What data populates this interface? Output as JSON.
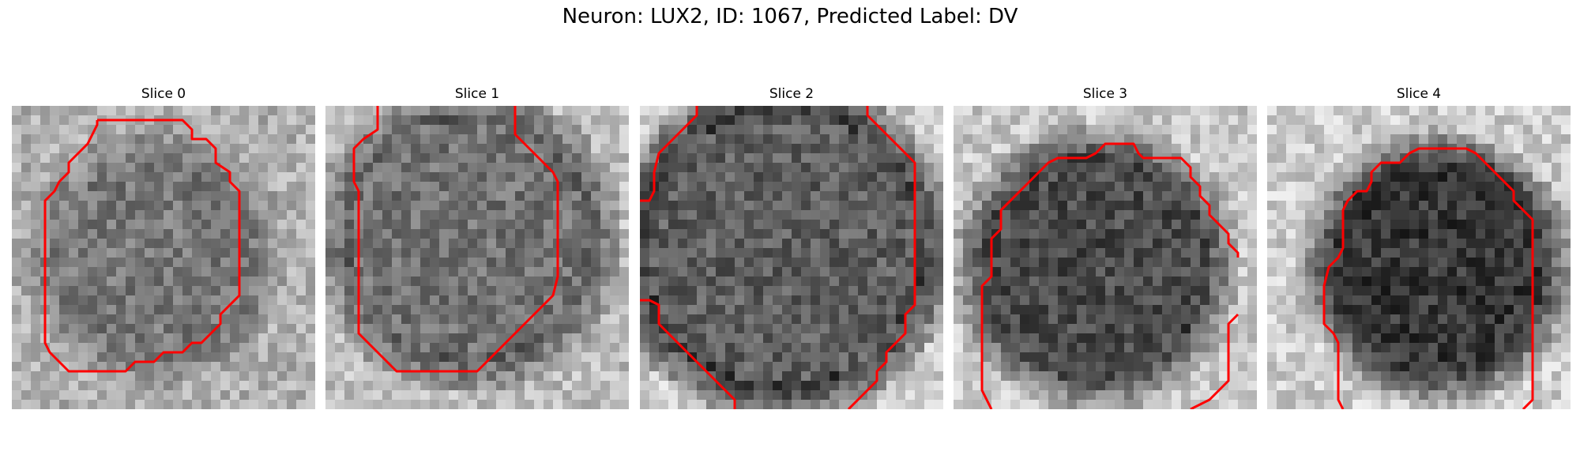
{
  "figure": {
    "title": "Neuron: LUX2, ID: 1067, Predicted Label: DV"
  },
  "panels": [
    {
      "title": "Slice 0",
      "image": "grayscale microscopy patch of a neuron cell body with red segmentation contour"
    },
    {
      "title": "Slice 1",
      "image": "grayscale microscopy patch of a neuron cell body with red segmentation contour"
    },
    {
      "title": "Slice 2",
      "image": "grayscale microscopy patch of a neuron cell body with red segmentation contour"
    },
    {
      "title": "Slice 3",
      "image": "grayscale microscopy patch of a neuron cell body with red segmentation contour"
    },
    {
      "title": "Slice 4",
      "image": "grayscale microscopy patch of a neuron cell body with red segmentation contour"
    }
  ],
  "colors": {
    "contour": "#ff0000",
    "background": "#ffffff"
  }
}
